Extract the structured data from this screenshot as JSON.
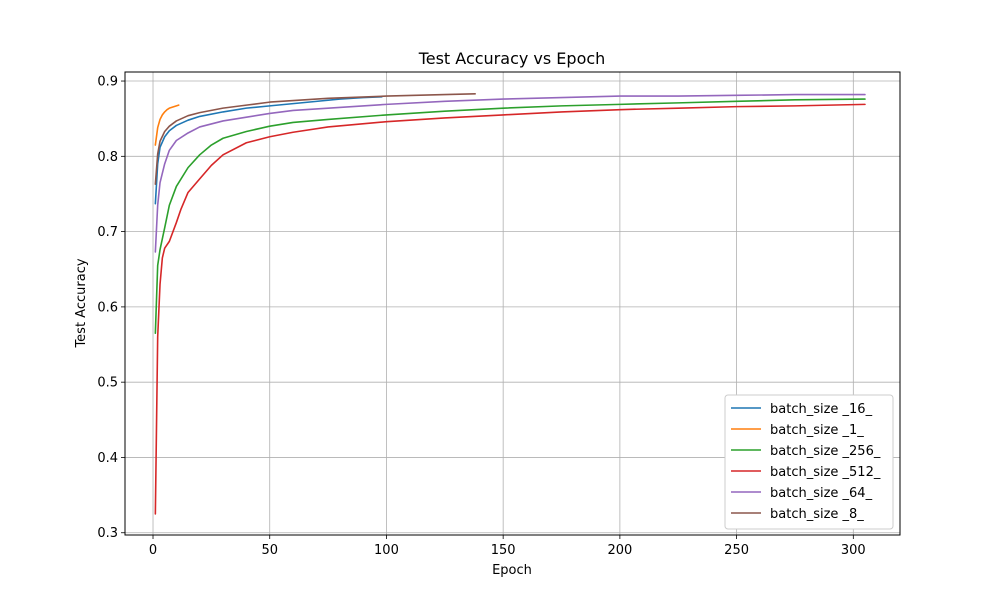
{
  "chart_data": {
    "type": "line",
    "title": "Test Accuracy vs Epoch",
    "xlabel": "Epoch",
    "ylabel": "Test Accuracy",
    "xlim": [
      -12,
      320
    ],
    "ylim": [
      0.297,
      0.912
    ],
    "xticks": [
      0,
      50,
      100,
      150,
      200,
      250,
      300
    ],
    "yticks": [
      0.3,
      0.4,
      0.5,
      0.6,
      0.7,
      0.8,
      0.9
    ],
    "ytick_labels": [
      "0.3",
      "0.4",
      "0.5",
      "0.6",
      "0.7",
      "0.8",
      "0.9"
    ],
    "grid": true,
    "legend_position": "lower-right",
    "series": [
      {
        "name": "batch_size _16_",
        "color": "#1f77b4",
        "points": [
          [
            1,
            0.737
          ],
          [
            2,
            0.79
          ],
          [
            3,
            0.812
          ],
          [
            5,
            0.826
          ],
          [
            7,
            0.834
          ],
          [
            10,
            0.841
          ],
          [
            15,
            0.848
          ],
          [
            20,
            0.853
          ],
          [
            30,
            0.859
          ],
          [
            40,
            0.864
          ],
          [
            50,
            0.867
          ],
          [
            60,
            0.87
          ],
          [
            70,
            0.873
          ],
          [
            80,
            0.876
          ],
          [
            90,
            0.878
          ],
          [
            98,
            0.879
          ]
        ]
      },
      {
        "name": "batch_size _1_",
        "color": "#ff7f0e",
        "points": [
          [
            1,
            0.815
          ],
          [
            2,
            0.838
          ],
          [
            3,
            0.849
          ],
          [
            4,
            0.855
          ],
          [
            5,
            0.859
          ],
          [
            6,
            0.862
          ],
          [
            7,
            0.864
          ],
          [
            8,
            0.865
          ],
          [
            9,
            0.866
          ],
          [
            10,
            0.867
          ],
          [
            11,
            0.868
          ]
        ]
      },
      {
        "name": "batch_size _256_",
        "color": "#2ca02c",
        "points": [
          [
            1,
            0.565
          ],
          [
            2,
            0.655
          ],
          [
            3,
            0.676
          ],
          [
            5,
            0.705
          ],
          [
            7,
            0.735
          ],
          [
            10,
            0.76
          ],
          [
            15,
            0.785
          ],
          [
            20,
            0.802
          ],
          [
            25,
            0.815
          ],
          [
            30,
            0.824
          ],
          [
            40,
            0.833
          ],
          [
            50,
            0.84
          ],
          [
            60,
            0.845
          ],
          [
            75,
            0.849
          ],
          [
            100,
            0.855
          ],
          [
            125,
            0.86
          ],
          [
            150,
            0.864
          ],
          [
            175,
            0.867
          ],
          [
            200,
            0.869
          ],
          [
            225,
            0.871
          ],
          [
            250,
            0.873
          ],
          [
            275,
            0.875
          ],
          [
            305,
            0.876
          ]
        ]
      },
      {
        "name": "batch_size _512_",
        "color": "#d62728",
        "points": [
          [
            1,
            0.325
          ],
          [
            2,
            0.56
          ],
          [
            3,
            0.63
          ],
          [
            4,
            0.665
          ],
          [
            5,
            0.678
          ],
          [
            7,
            0.687
          ],
          [
            10,
            0.712
          ],
          [
            12,
            0.73
          ],
          [
            15,
            0.752
          ],
          [
            20,
            0.77
          ],
          [
            25,
            0.788
          ],
          [
            30,
            0.802
          ],
          [
            40,
            0.818
          ],
          [
            50,
            0.826
          ],
          [
            60,
            0.832
          ],
          [
            75,
            0.839
          ],
          [
            100,
            0.846
          ],
          [
            125,
            0.851
          ],
          [
            150,
            0.855
          ],
          [
            175,
            0.859
          ],
          [
            200,
            0.862
          ],
          [
            225,
            0.864
          ],
          [
            250,
            0.866
          ],
          [
            275,
            0.867
          ],
          [
            305,
            0.869
          ]
        ]
      },
      {
        "name": "batch_size _64_",
        "color": "#9467bd",
        "points": [
          [
            1,
            0.673
          ],
          [
            2,
            0.735
          ],
          [
            3,
            0.765
          ],
          [
            5,
            0.79
          ],
          [
            7,
            0.808
          ],
          [
            10,
            0.821
          ],
          [
            15,
            0.831
          ],
          [
            20,
            0.839
          ],
          [
            30,
            0.847
          ],
          [
            40,
            0.852
          ],
          [
            50,
            0.857
          ],
          [
            60,
            0.861
          ],
          [
            75,
            0.864
          ],
          [
            100,
            0.869
          ],
          [
            125,
            0.873
          ],
          [
            150,
            0.876
          ],
          [
            175,
            0.878
          ],
          [
            200,
            0.88
          ],
          [
            225,
            0.88
          ],
          [
            250,
            0.881
          ],
          [
            275,
            0.882
          ],
          [
            305,
            0.882
          ]
        ]
      },
      {
        "name": "batch_size _8_",
        "color": "#8c564b",
        "points": [
          [
            1,
            0.763
          ],
          [
            2,
            0.803
          ],
          [
            3,
            0.82
          ],
          [
            5,
            0.833
          ],
          [
            7,
            0.84
          ],
          [
            10,
            0.847
          ],
          [
            15,
            0.854
          ],
          [
            20,
            0.858
          ],
          [
            30,
            0.864
          ],
          [
            40,
            0.868
          ],
          [
            50,
            0.872
          ],
          [
            60,
            0.874
          ],
          [
            75,
            0.877
          ],
          [
            100,
            0.88
          ],
          [
            125,
            0.882
          ],
          [
            138,
            0.883
          ]
        ]
      }
    ]
  }
}
